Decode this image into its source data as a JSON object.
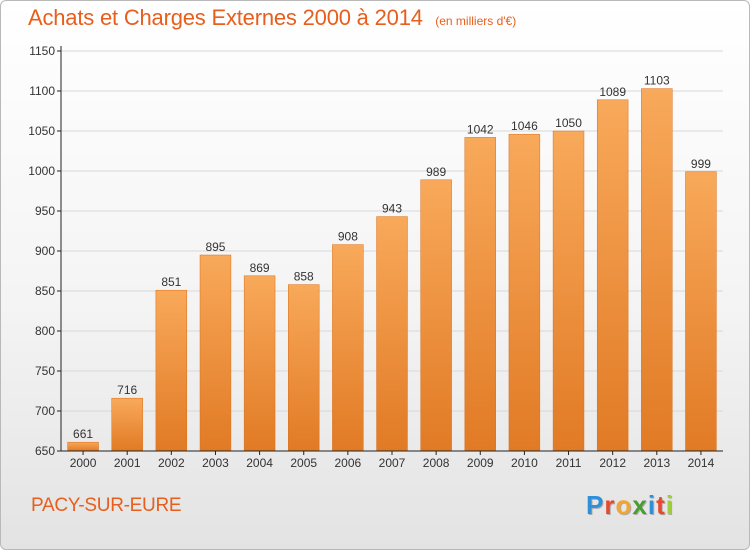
{
  "title": "Achats et Charges Externes 2000 à 2014",
  "subtitle": "(en milliers d'€)",
  "commune": "PACY-SUR-EURE",
  "logo": {
    "text": "Proxiti",
    "letters": [
      "P",
      "r",
      "o",
      "x",
      "i",
      "t",
      "i"
    ],
    "colors": [
      "#2f8fd8",
      "#e64a2e",
      "#f2a533",
      "#4a9e2f",
      "#2f8fd8",
      "#e64a2e",
      "#9ecf3a"
    ]
  },
  "colors": {
    "accent": "#e85e1c",
    "bar_top": "#f8a95a",
    "bar_bottom": "#e17a25",
    "grid": "#d8d8d8",
    "axis": "#222222"
  },
  "chart_data": {
    "type": "bar",
    "categories": [
      "2000",
      "2001",
      "2002",
      "2003",
      "2004",
      "2005",
      "2006",
      "2007",
      "2008",
      "2009",
      "2010",
      "2011",
      "2012",
      "2013",
      "2014"
    ],
    "values": [
      661,
      716,
      851,
      895,
      869,
      858,
      908,
      943,
      989,
      1042,
      1046,
      1050,
      1089,
      1103,
      999
    ],
    "ylim": [
      650,
      1150
    ],
    "yticks": [
      650,
      700,
      750,
      800,
      850,
      900,
      950,
      1000,
      1050,
      1100,
      1150
    ],
    "grid": true,
    "data_labels": true
  }
}
